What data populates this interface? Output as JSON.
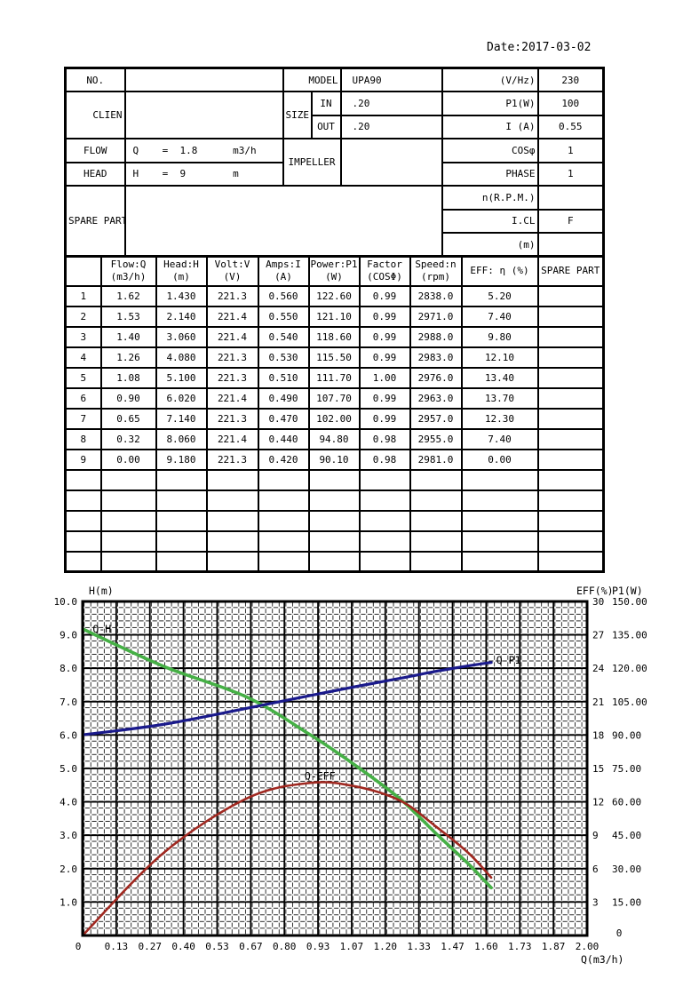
{
  "date_label": "Date:2017-03-02",
  "spec_table": {
    "no_label": "NO.",
    "no_value": "",
    "client_label": "CLIEN",
    "client_value": "",
    "model_label": "MODEL",
    "model_value": "UPA90",
    "vhz_label": "(V/Hz)",
    "vhz_value": "230",
    "size_label": "SIZE",
    "in_label": "IN",
    "in_value": ".20",
    "out_label": "OUT",
    "out_value": ".20",
    "p1_label": "P1(W)",
    "p1_value": "100",
    "i_label": "I (A)",
    "i_value": "0.55",
    "flow_label": "FLOW",
    "flow_value": "Q    =  1.8      m3/h",
    "head_label": "HEAD",
    "head_value": "H    =  9        m",
    "impeller_label": "IMPELLER",
    "impeller_value": "",
    "cos_label": "COSφ",
    "cos_value": "1",
    "phase_label": "PHASE",
    "phase_value": "1",
    "spare_label": "SPARE PART",
    "spare_value": "",
    "rpm_label": "n(R.P.M.)",
    "rpm_value": "",
    "icl_label": "I.CL",
    "icl_value": "F",
    "m_label": "(m)",
    "m_value": ""
  },
  "data_table": {
    "headers_line1": [
      "",
      "Flow:Q",
      "Head:H",
      "Volt:V",
      "Amps:I",
      "Power:P1",
      "Factor",
      "Speed:n",
      "EFF: η (%)",
      "SPARE PART"
    ],
    "headers_line2": [
      "",
      "(m3/h)",
      "(m)",
      "(V)",
      "(A)",
      "(W)",
      "(COSΦ)",
      "(rpm)",
      "",
      ""
    ],
    "rows": [
      [
        "1",
        "1.62",
        "1.430",
        "221.3",
        "0.560",
        "122.60",
        "0.99",
        "2838.0",
        "5.20",
        ""
      ],
      [
        "2",
        "1.53",
        "2.140",
        "221.4",
        "0.550",
        "121.10",
        "0.99",
        "2971.0",
        "7.40",
        ""
      ],
      [
        "3",
        "1.40",
        "3.060",
        "221.4",
        "0.540",
        "118.60",
        "0.99",
        "2988.0",
        "9.80",
        ""
      ],
      [
        "4",
        "1.26",
        "4.080",
        "221.3",
        "0.530",
        "115.50",
        "0.99",
        "2983.0",
        "12.10",
        ""
      ],
      [
        "5",
        "1.08",
        "5.100",
        "221.3",
        "0.510",
        "111.70",
        "1.00",
        "2976.0",
        "13.40",
        ""
      ],
      [
        "6",
        "0.90",
        "6.020",
        "221.4",
        "0.490",
        "107.70",
        "0.99",
        "2963.0",
        "13.70",
        ""
      ],
      [
        "7",
        "0.65",
        "7.140",
        "221.3",
        "0.470",
        "102.00",
        "0.99",
        "2957.0",
        "12.30",
        ""
      ],
      [
        "8",
        "0.32",
        "8.060",
        "221.4",
        "0.440",
        "94.80",
        "0.98",
        "2955.0",
        "7.40",
        ""
      ],
      [
        "9",
        "0.00",
        "9.180",
        "221.3",
        "0.420",
        "90.10",
        "0.98",
        "2981.0",
        "0.00",
        ""
      ]
    ],
    "empty_row_count": 5
  },
  "chart_data": {
    "type": "line",
    "x_axis": {
      "label": "Q(m3/h)",
      "min": 0,
      "max": 2.0,
      "ticks": [
        "0",
        "0.13",
        "0.27",
        "0.40",
        "0.53",
        "0.67",
        "0.80",
        "0.93",
        "1.07",
        "1.20",
        "1.33",
        "1.47",
        "1.60",
        "1.73",
        "1.87",
        "2.00"
      ]
    },
    "y_left": {
      "label": "H(m)",
      "min": 0,
      "max": 10,
      "ticks": [
        "10.0",
        "9.0",
        "8.0",
        "7.0",
        "6.0",
        "5.0",
        "4.0",
        "3.0",
        "2.0",
        "1.0"
      ]
    },
    "y_right_eff": {
      "label": "EFF(%)",
      "min": 0,
      "max": 30,
      "ticks": [
        "30",
        "27",
        "24",
        "21",
        "18",
        "15",
        "12",
        "9",
        "6",
        "3"
      ],
      "zero_tick": "0"
    },
    "y_right_p1": {
      "label": "P1(W)",
      "min": 0,
      "max": 150,
      "ticks": [
        "150.00",
        "135.00",
        "120.00",
        "105.00",
        "90.00",
        "75.00",
        "60.00",
        "45.00",
        "30.00",
        "15.00"
      ]
    },
    "grid": {
      "major_cols": 15,
      "major_rows": 10,
      "minor_dotted": true
    },
    "series": [
      {
        "name": "Q-H",
        "axis": "left",
        "color": "#46b046",
        "x": [
          0.0,
          0.32,
          0.65,
          0.9,
          1.08,
          1.26,
          1.4,
          1.53,
          1.62
        ],
        "y": [
          9.18,
          8.06,
          7.14,
          6.02,
          5.1,
          4.08,
          3.06,
          2.14,
          1.43
        ]
      },
      {
        "name": "Q-P1",
        "axis": "p1",
        "color": "#1a1a8c",
        "x": [
          0.0,
          0.32,
          0.65,
          0.9,
          1.08,
          1.26,
          1.4,
          1.53,
          1.62
        ],
        "y": [
          90.1,
          94.8,
          102.0,
          107.7,
          111.7,
          115.5,
          118.6,
          121.1,
          122.6
        ]
      },
      {
        "name": "Q-EFF",
        "axis": "eff",
        "color": "#a02820",
        "x": [
          0.0,
          0.32,
          0.65,
          0.9,
          1.08,
          1.26,
          1.4,
          1.53,
          1.62
        ],
        "y": [
          0.0,
          7.4,
          12.3,
          13.7,
          13.4,
          12.1,
          9.8,
          7.4,
          5.2
        ]
      }
    ],
    "curve_labels": [
      {
        "text": "Q-H",
        "x": 0.04,
        "y": 9.18
      },
      {
        "text": "Q-P1",
        "x": 1.64,
        "y": 8.25
      },
      {
        "text": "Q-EFF",
        "x": 0.88,
        "y": 4.78
      }
    ]
  }
}
